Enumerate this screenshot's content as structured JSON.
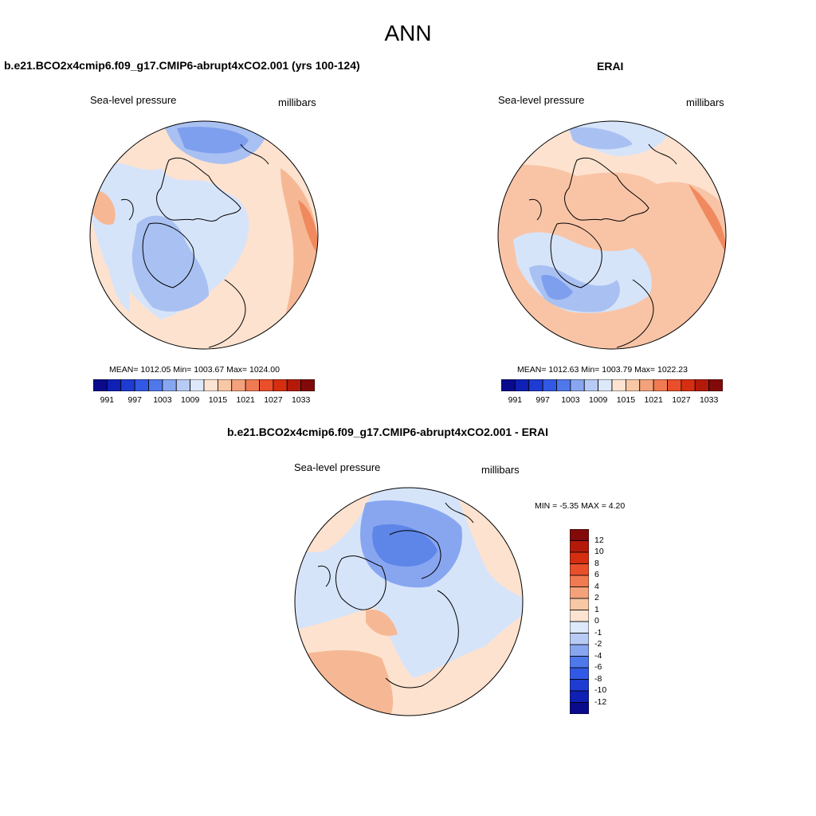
{
  "title": "ANN",
  "panels": [
    {
      "title": "b.e21.BCO2x4cmip6.f09_g17.CMIP6-abrupt4xCO2.001 (yrs 100-124)",
      "variable": "Sea-level pressure",
      "units": "millibars",
      "stats": {
        "mean": "1012.05",
        "min": "1003.67",
        "max": "1024.00",
        "text": "MEAN= 1012.05  Min= 1003.67  Max= 1024.00"
      }
    },
    {
      "title": "ERAI",
      "variable": "Sea-level pressure",
      "units": "millibars",
      "stats": {
        "mean": "1012.63",
        "min": "1003.79",
        "max": "1022.23",
        "text": "MEAN= 1012.63  Min= 1003.79  Max= 1022.23"
      }
    },
    {
      "title": "b.e21.BCO2x4cmip6.f09_g17.CMIP6-abrupt4xCO2.001 - ERAI",
      "variable": "Sea-level pressure",
      "units": "millibars",
      "stats": {
        "min": "-5.35",
        "max": "4.20",
        "text": "MIN =  -5.35 MAX =   4.20"
      }
    }
  ],
  "colorbar_abs": {
    "labels": [
      "991",
      "997",
      "1003",
      "1009",
      "1015",
      "1021",
      "1027",
      "1033"
    ],
    "colors": [
      "#0a0a8c",
      "#1020b4",
      "#1e3cd2",
      "#3259e6",
      "#4f78ea",
      "#88a6f0",
      "#b8cbf5",
      "#dde8fb",
      "#fde4d2",
      "#f8c7a6",
      "#f4a27c",
      "#f07a52",
      "#ea4f2c",
      "#d52e10",
      "#b41a0a",
      "#820a0a"
    ]
  },
  "colorbar_diff": {
    "labels": [
      "12",
      "10",
      "8",
      "6",
      "4",
      "2",
      "1",
      "0",
      "-1",
      "-2",
      "-4",
      "-6",
      "-8",
      "-10",
      "-12"
    ],
    "colors": [
      "#820a0a",
      "#b41a0a",
      "#d52e10",
      "#ea4f2c",
      "#f07a52",
      "#f4a27c",
      "#f8c7a6",
      "#fde4d2",
      "#dde8fb",
      "#b8cbf5",
      "#88a6f0",
      "#4f78ea",
      "#3259e6",
      "#1e3cd2",
      "#1020b4",
      "#0a0a8c"
    ]
  },
  "colors": {
    "coast": "#000000",
    "blue_light": "#d6e4fa",
    "blue_mid": "#a9c1f2",
    "blue_dark": "#5e86e8",
    "red_light": "#fde2cf",
    "red_mid": "#f6b894",
    "red_dark": "#f08a5e"
  }
}
